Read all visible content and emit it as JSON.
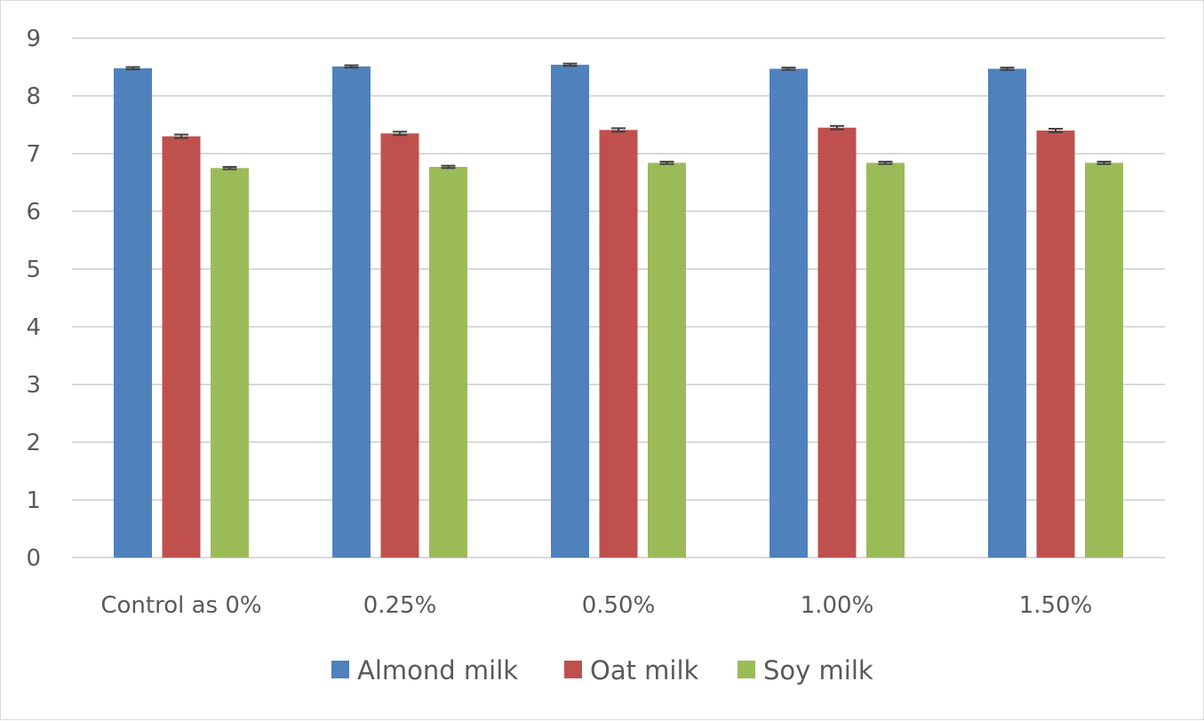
{
  "chart_data": {
    "type": "bar",
    "title": "",
    "xlabel": "",
    "ylabel": "",
    "categories": [
      "Control as 0%",
      "0.25%",
      "0.50%",
      "1.00%",
      "1.50%"
    ],
    "series": [
      {
        "name": "Almond milk",
        "color": "#4f81bd",
        "values": [
          8.48,
          8.51,
          8.54,
          8.47,
          8.47
        ],
        "error": [
          0.02,
          0.02,
          0.02,
          0.02,
          0.02
        ]
      },
      {
        "name": "Oat milk",
        "color": "#c0504d",
        "values": [
          7.3,
          7.35,
          7.41,
          7.45,
          7.4
        ],
        "error": [
          0.03,
          0.03,
          0.03,
          0.03,
          0.03
        ]
      },
      {
        "name": "Soy milk",
        "color": "#9bbb59",
        "values": [
          6.75,
          6.77,
          6.84,
          6.84,
          6.84
        ],
        "error": [
          0.02,
          0.02,
          0.02,
          0.02,
          0.02
        ]
      }
    ],
    "ylim": [
      0,
      9
    ],
    "yticks": [
      0,
      1,
      2,
      3,
      4,
      5,
      6,
      7,
      8,
      9
    ],
    "grid": true,
    "legend": "bottom-center",
    "colors": {
      "gridline": "#d9d9d9",
      "axis_text": "#595959",
      "error_bar": "#404040"
    }
  }
}
